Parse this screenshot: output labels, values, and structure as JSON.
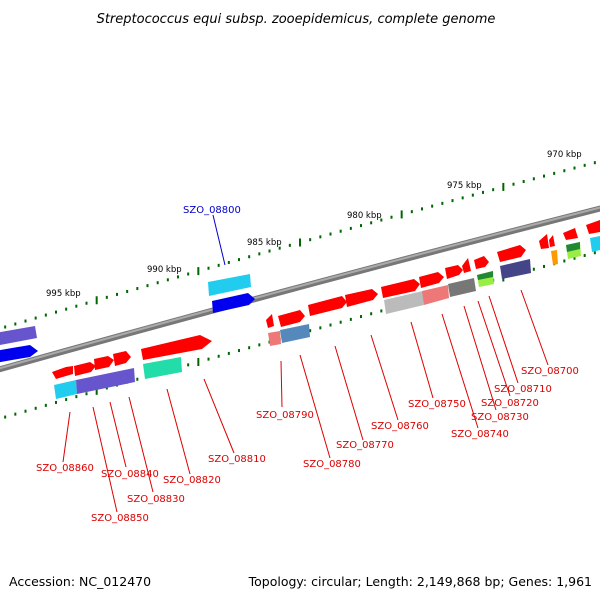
{
  "title": "Streptococcus equi subsp. zooepidemicus, complete genome",
  "footer": {
    "accession": "Accession: NC_012470",
    "summary": "Topology: circular; Length: 2,149,868 bp; Genes: 1,961"
  },
  "colors": {
    "red_gene": "#ff0000",
    "blue_gene": "#0000ee",
    "purple_gene": "#6655cc",
    "cyan_gene": "#22ccee",
    "green_gene": "#22ddaa",
    "pink_gene": "#ee7777",
    "grey_gene": "#999999",
    "steel_gene": "#5588bb",
    "lime_gene": "#99ee44",
    "orange_gene": "#ff9900",
    "dark_green_gene": "#228833",
    "navy_gene": "#444488",
    "tick": "#006600",
    "backbone": "#777777",
    "label_red": "#dd0000",
    "label_blue": "#0000cc"
  },
  "scale_labels": [
    "995 kbp",
    "990 kbp",
    "985 kbp",
    "980 kbp",
    "975 kbp",
    "970 kbp"
  ],
  "gene_labels": [
    "SZO_08800",
    "SZO_08700",
    "SZO_08710",
    "SZO_08720",
    "SZO_08730",
    "SZO_08740",
    "SZO_08750",
    "SZO_08760",
    "SZO_08770",
    "SZO_08780",
    "SZO_08790",
    "SZO_08810",
    "SZO_08820",
    "SZO_08830",
    "SZO_08840",
    "SZO_08850",
    "SZO_08860"
  ]
}
